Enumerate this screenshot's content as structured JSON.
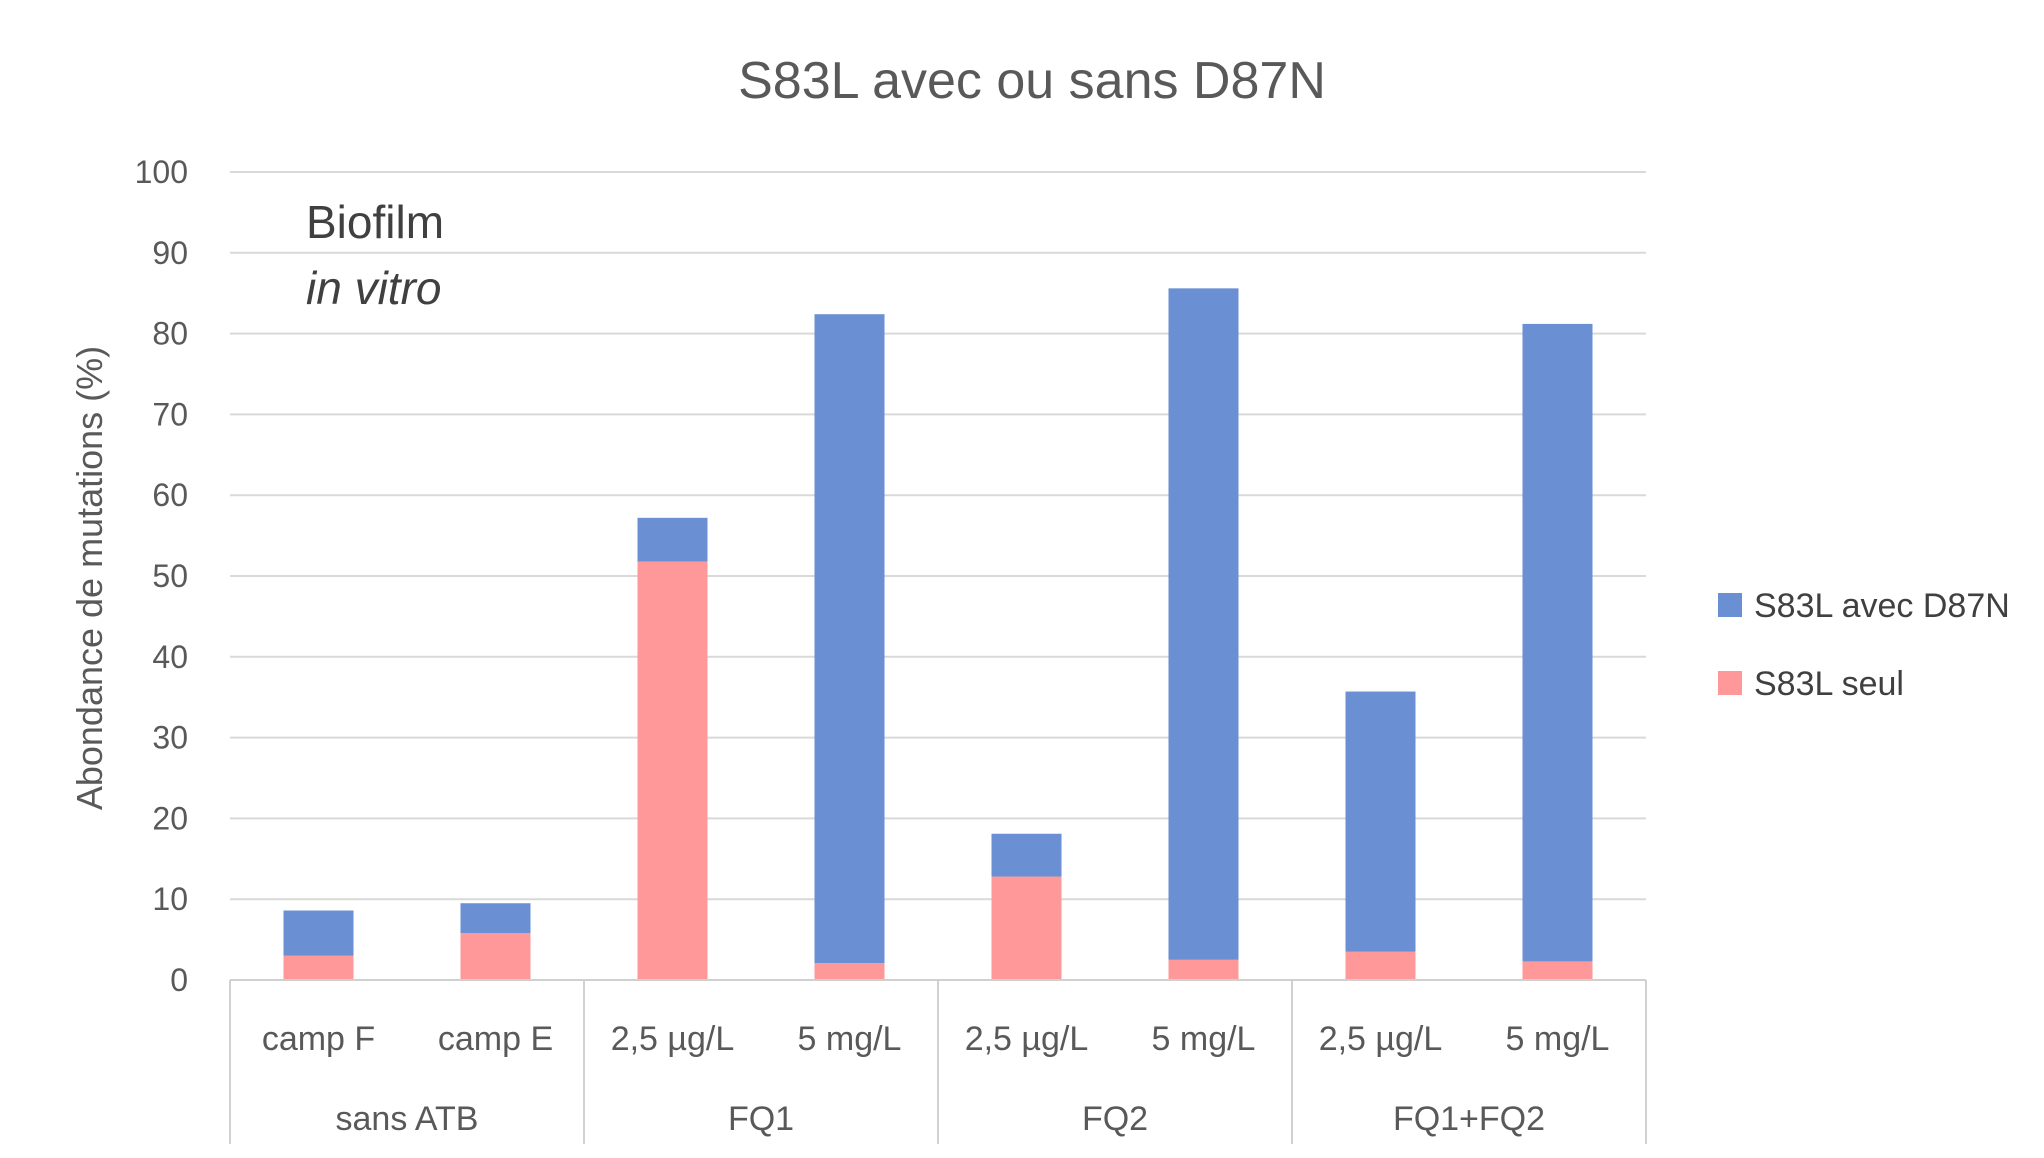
{
  "chart_data": {
    "type": "bar",
    "stacked": true,
    "title": "S83L avec ou sans D87N",
    "ylabel": "Abondance de mutations (%)",
    "xlabel": "",
    "ylim": [
      0,
      100
    ],
    "yticks": [
      0,
      10,
      20,
      30,
      40,
      50,
      60,
      70,
      80,
      90,
      100
    ],
    "grid": true,
    "legend_position": "right",
    "categories": [
      "camp F",
      "camp E",
      "2,5 µg/L",
      "5 mg/L",
      "2,5 µg/L",
      "5 mg/L",
      "2,5 µg/L",
      "5 mg/L"
    ],
    "groups": [
      {
        "label": "sans ATB",
        "count": 2
      },
      {
        "label": "FQ1",
        "count": 2
      },
      {
        "label": "FQ2",
        "count": 2
      },
      {
        "label": "FQ1+FQ2",
        "count": 2
      }
    ],
    "series": [
      {
        "name": "S83L seul",
        "color": "#FF9999",
        "values": [
          3.0,
          5.8,
          51.8,
          2.1,
          12.8,
          2.5,
          3.5,
          2.3
        ]
      },
      {
        "name": "S83L avec D87N",
        "color": "#6A8FD2",
        "values": [
          5.6,
          3.7,
          5.4,
          80.3,
          5.3,
          83.1,
          32.2,
          78.9
        ]
      }
    ],
    "legend_order": [
      "S83L avec D87N",
      "S83L seul"
    ],
    "annotation": {
      "line1": "Biofilm",
      "line2": "in vitro"
    }
  }
}
